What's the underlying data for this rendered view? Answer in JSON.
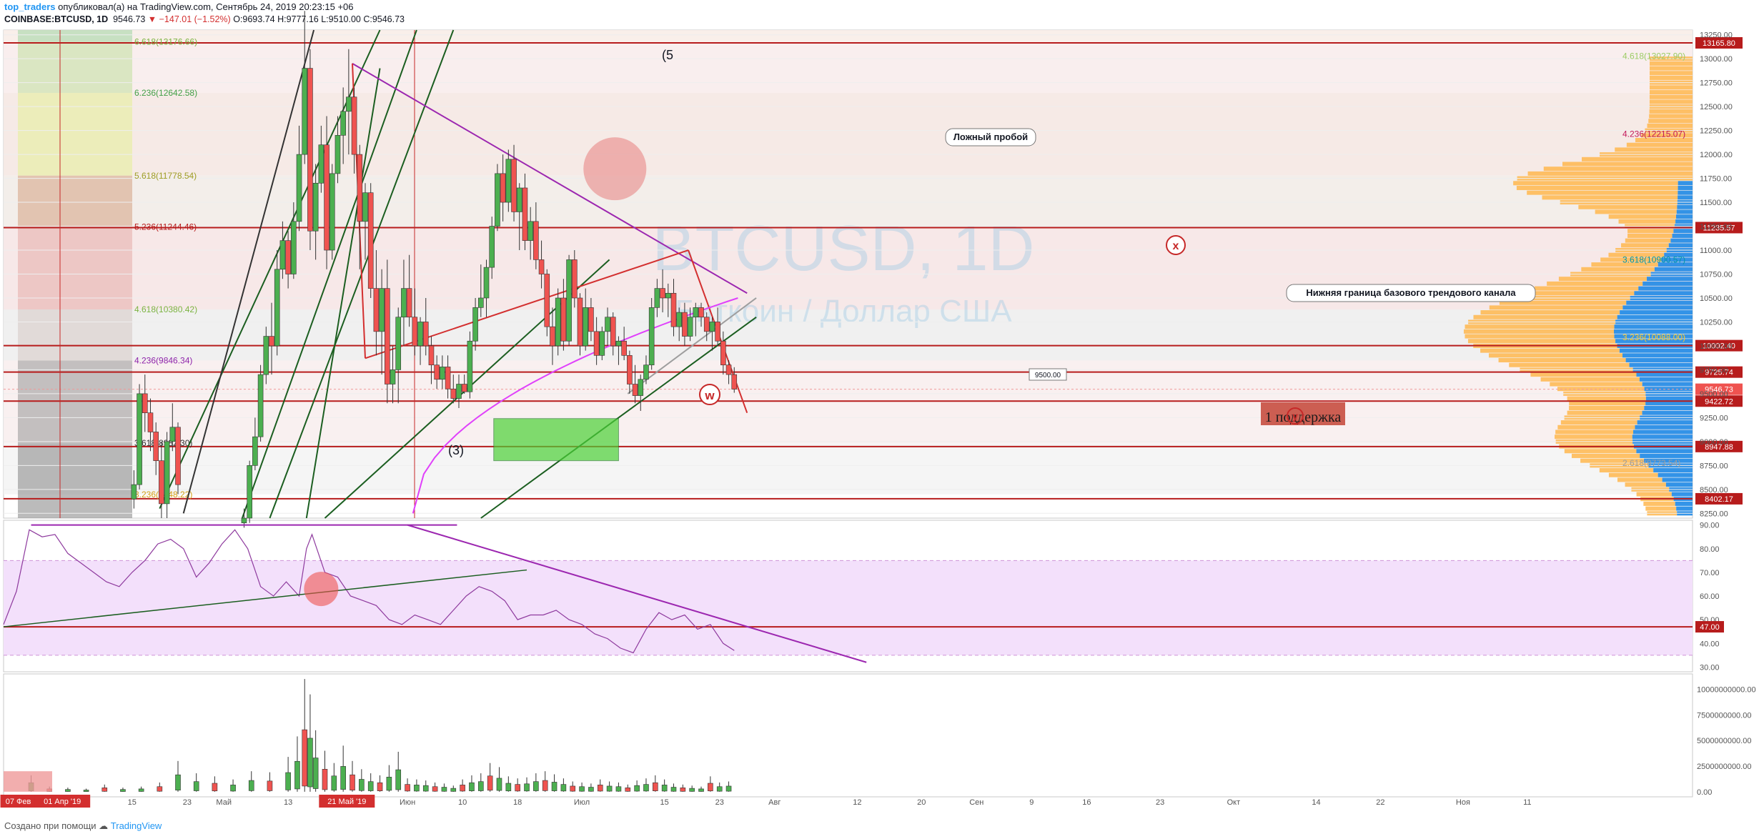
{
  "header": {
    "author": "top_traders",
    "published": "опубликовал(а) на TradingView.com, Сентябрь 24, 2019 20:23:15 +06",
    "symbol": "COINBASE:BTCUSD, 1D",
    "price": "9546.73",
    "change": "▼ −147.01 (−1.52%)",
    "open": "O:9693.74",
    "high": "H:9777.16",
    "low": "L:9510.00",
    "close": "C:9546.73"
  },
  "watermark": {
    "line1": "BTCUSD, 1D",
    "line2": "Биткоин / Доллар США"
  },
  "footer": {
    "created_with": "Создано при помощи",
    "brand": "TradingView"
  },
  "colors": {
    "up": "#4caf50",
    "down": "#ef5350",
    "fib_red": "#b71c1c",
    "purple": "#9c27b0",
    "magenta": "#e040fb",
    "green_line": "#1b5e20",
    "volume_profile_blue": "#1e88e5",
    "volume_profile_orange": "#ffb74d",
    "rsi_fill": "#f3e0fb"
  },
  "chart_data": [
    {
      "type": "candlestick",
      "pane": "price",
      "ylim": [
        8200,
        13300
      ],
      "y_ticks": [
        "8250.00",
        "8500.00",
        "8750.00",
        "9000.00",
        "9250.00",
        "9500.00",
        "9750.00",
        "10000.00",
        "10250.00",
        "10500.00",
        "10750.00",
        "11000.00",
        "11250.00",
        "11500.00",
        "11750.00",
        "12000.00",
        "12250.00",
        "12500.00",
        "12750.00",
        "13000.00",
        "13250.00"
      ],
      "x_labels": [
        "07 Фев",
        "01 Апр '19",
        "15",
        "23",
        "Май",
        "13",
        "21 Май '19",
        "Июн",
        "10",
        "18",
        "Июл",
        "15",
        "23",
        "Авг",
        "12",
        "20",
        "Сен",
        "9",
        "16",
        "23",
        "Окт",
        "14",
        "22",
        "Ноя",
        "11"
      ],
      "x_label_pos": [
        0.8,
        3.2,
        7,
        10,
        12,
        15.5,
        18.7,
        22,
        25,
        28,
        31.5,
        36,
        39,
        42,
        46.5,
        50,
        53,
        56,
        59,
        63,
        67,
        71.5,
        75,
        79.5,
        83
      ],
      "ohlc": [
        [
          7.1,
          8400,
          8700,
          8300,
          8550
        ],
        [
          7.4,
          8550,
          9600,
          8500,
          9500
        ],
        [
          7.7,
          9500,
          9700,
          9100,
          9300
        ],
        [
          8.0,
          9300,
          9450,
          8900,
          9100
        ],
        [
          8.3,
          9100,
          9200,
          8650,
          8800
        ],
        [
          8.6,
          8800,
          9000,
          8200,
          8350
        ],
        [
          8.9,
          8350,
          9100,
          8200,
          9000
        ],
        [
          9.2,
          9000,
          9400,
          8900,
          9150
        ],
        [
          9.5,
          9150,
          9200,
          8450,
          8550
        ],
        [
          13.1,
          8150,
          8300,
          8100,
          8200
        ],
        [
          13.4,
          8200,
          8800,
          8150,
          8750
        ],
        [
          13.7,
          8750,
          9250,
          8700,
          9050
        ],
        [
          14.0,
          9050,
          9800,
          9000,
          9700
        ],
        [
          14.3,
          9700,
          10200,
          9600,
          10100
        ],
        [
          14.6,
          10100,
          10450,
          9700,
          10000
        ],
        [
          14.9,
          10000,
          11000,
          9900,
          10800
        ],
        [
          15.2,
          10800,
          11300,
          10700,
          11100
        ],
        [
          15.5,
          11100,
          11200,
          10600,
          10750
        ],
        [
          15.8,
          10750,
          11500,
          10700,
          11300
        ],
        [
          16.1,
          11300,
          12300,
          11200,
          12000
        ],
        [
          16.4,
          12000,
          13500,
          11900,
          12900
        ],
        [
          16.7,
          12900,
          13100,
          11000,
          11200
        ],
        [
          17.0,
          11200,
          11900,
          10900,
          11700
        ],
        [
          17.3,
          11700,
          12300,
          11600,
          12100
        ],
        [
          17.6,
          12100,
          12400,
          10800,
          11000
        ],
        [
          17.9,
          11000,
          11900,
          10900,
          11800
        ],
        [
          18.2,
          11800,
          12400,
          11700,
          12200
        ],
        [
          18.5,
          12200,
          12700,
          11900,
          12450
        ],
        [
          18.8,
          12450,
          13100,
          12000,
          12600
        ],
        [
          19.1,
          12600,
          12700,
          11800,
          12000
        ],
        [
          19.4,
          12000,
          12100,
          10800,
          11300
        ],
        [
          19.7,
          11300,
          11700,
          10900,
          11600
        ],
        [
          20.0,
          11600,
          11700,
          10500,
          10600
        ],
        [
          20.3,
          10600,
          11000,
          9900,
          10150
        ],
        [
          20.6,
          10150,
          10800,
          9700,
          10600
        ],
        [
          20.9,
          10600,
          10900,
          9400,
          9600
        ],
        [
          21.2,
          9600,
          10000,
          9400,
          9750
        ],
        [
          21.5,
          9750,
          10400,
          9400,
          10300
        ],
        [
          21.8,
          10300,
          10900,
          10000,
          10600
        ],
        [
          22.1,
          10600,
          10950,
          10200,
          10300
        ],
        [
          22.4,
          10300,
          10600,
          9900,
          10000
        ],
        [
          22.7,
          10000,
          10300,
          9800,
          10250
        ],
        [
          23.0,
          10250,
          10500,
          9900,
          10000
        ],
        [
          23.3,
          10000,
          10100,
          9600,
          9800
        ],
        [
          23.6,
          9800,
          9900,
          9550,
          9650
        ],
        [
          23.9,
          9650,
          9900,
          9550,
          9780
        ],
        [
          24.2,
          9780,
          9900,
          9450,
          9550
        ],
        [
          24.5,
          9550,
          9700,
          9400,
          9450
        ],
        [
          24.8,
          9450,
          9700,
          9350,
          9600
        ],
        [
          25.1,
          9600,
          9700,
          9500,
          9520
        ],
        [
          25.4,
          9520,
          10150,
          9450,
          10050
        ],
        [
          25.7,
          10050,
          10500,
          9950,
          10400
        ],
        [
          26.0,
          10400,
          10850,
          10300,
          10500
        ],
        [
          26.3,
          10500,
          10900,
          10300,
          10820
        ],
        [
          26.6,
          10820,
          11350,
          10700,
          11250
        ],
        [
          26.9,
          11250,
          11900,
          11200,
          11800
        ],
        [
          27.2,
          11800,
          12000,
          11300,
          11500
        ],
        [
          27.5,
          11500,
          12050,
          11400,
          11950
        ],
        [
          27.8,
          11950,
          12100,
          11300,
          11400
        ],
        [
          28.1,
          11400,
          11700,
          11000,
          11650
        ],
        [
          28.4,
          11650,
          11800,
          11000,
          11100
        ],
        [
          28.7,
          11100,
          11450,
          10900,
          11300
        ],
        [
          29.0,
          11300,
          11500,
          10800,
          10900
        ],
        [
          29.3,
          10900,
          11100,
          10600,
          10750
        ],
        [
          29.6,
          10750,
          10800,
          10100,
          10200
        ],
        [
          29.9,
          10200,
          10400,
          9800,
          10000
        ],
        [
          30.2,
          10000,
          10600,
          9900,
          10500
        ],
        [
          30.5,
          10500,
          10700,
          9950,
          10050
        ],
        [
          30.8,
          10050,
          10950,
          10000,
          10900
        ],
        [
          31.1,
          10900,
          11000,
          10400,
          10500
        ],
        [
          31.4,
          10500,
          10550,
          9900,
          10000
        ],
        [
          31.7,
          10000,
          10600,
          9950,
          10400
        ],
        [
          32.0,
          10400,
          10500,
          10050,
          10150
        ],
        [
          32.3,
          10150,
          10300,
          9800,
          9900
        ],
        [
          32.6,
          9900,
          10200,
          9850,
          10150
        ],
        [
          32.9,
          10150,
          10400,
          10000,
          10300
        ],
        [
          33.2,
          10300,
          10350,
          9900,
          10000
        ],
        [
          33.5,
          10000,
          10100,
          9800,
          10050
        ],
        [
          33.8,
          10050,
          10200,
          9850,
          9900
        ],
        [
          34.1,
          9900,
          9950,
          9500,
          9600
        ],
        [
          34.4,
          9600,
          9800,
          9400,
          9480
        ],
        [
          34.7,
          9480,
          9700,
          9320,
          9650
        ],
        [
          35.0,
          9650,
          9900,
          9600,
          9800
        ],
        [
          35.3,
          9800,
          10500,
          9750,
          10400
        ],
        [
          35.6,
          10400,
          10700,
          10300,
          10600
        ],
        [
          35.9,
          10600,
          10800,
          10350,
          10500
        ],
        [
          36.2,
          10500,
          10650,
          10300,
          10550
        ],
        [
          36.5,
          10550,
          10700,
          10100,
          10200
        ],
        [
          36.8,
          10200,
          10400,
          10050,
          10350
        ],
        [
          37.1,
          10350,
          10450,
          10000,
          10100
        ],
        [
          37.4,
          10100,
          10400,
          10050,
          10300
        ],
        [
          37.7,
          10300,
          10450,
          10100,
          10400
        ],
        [
          38.0,
          10400,
          10450,
          10200,
          10300
        ],
        [
          38.3,
          10300,
          10350,
          10050,
          10150
        ],
        [
          38.6,
          10150,
          10300,
          9950,
          10250
        ],
        [
          38.9,
          10250,
          10400,
          10000,
          10050
        ],
        [
          39.2,
          10050,
          10150,
          9700,
          9800
        ],
        [
          39.5,
          9800,
          9850,
          9600,
          9700
        ],
        [
          39.8,
          9700,
          9777,
          9510,
          9547
        ]
      ],
      "volume_profile": {
        "blue_bins": [
          11500,
          11000,
          10500,
          10000,
          9500,
          9000,
          8500
        ],
        "orange_bins": [
          11500,
          11000,
          10500,
          10000,
          9500,
          9000,
          8500
        ]
      },
      "price_labels": [
        {
          "value": 13165.8,
          "text": "13165.80"
        },
        {
          "value": 11235.57,
          "text": "11235.57"
        },
        {
          "value": 10002.4,
          "text": "10002.40"
        },
        {
          "value": 9725.74,
          "text": "9725.74"
        },
        {
          "value": 9546.73,
          "text": "9546.73"
        },
        {
          "value": 9422.72,
          "text": "9422.72"
        },
        {
          "value": 8947.88,
          "text": "8947.88"
        },
        {
          "value": 8402.17,
          "text": "8402.17"
        }
      ],
      "fib_levels_left": [
        {
          "value": 13176.66,
          "text": "6.618(13176.66)"
        },
        {
          "value": 12642.58,
          "text": "6.236(12642.58)"
        },
        {
          "value": 11778.54,
          "text": "5.618(11778.54)"
        },
        {
          "value": 11244.46,
          "text": "5.236(11244.46)"
        },
        {
          "value": 10380.42,
          "text": "4.618(10380.42)"
        },
        {
          "value": 9846.34,
          "text": "4.236(9846.34)"
        },
        {
          "value": 8982.3,
          "text": "3.618(8982.30)"
        },
        {
          "value": 8448.22,
          "text": "3.236(8448.22)"
        }
      ],
      "fib_levels_right": [
        {
          "value": 13027.9,
          "text": "4.618(13027.90)"
        },
        {
          "value": 12215.07,
          "text": "4.236(12215.07)"
        },
        {
          "value": 10900.57,
          "text": "3.618(10900.57)"
        },
        {
          "value": 10088.0,
          "text": "3.236(10088.00)"
        },
        {
          "value": 8773.54,
          "text": "2.618(8773.54)"
        }
      ],
      "annotations": {
        "false_breakout": "Ложный пробой",
        "channel_lower_bound": "Нижняя граница базового трендового канала",
        "support_1": "1 поддержка",
        "label_9500": "9500.00",
        "wave_5": "(5",
        "wave_3": "(3)",
        "w_label": "w",
        "x_label": "x",
        "y_label": "y"
      }
    },
    {
      "type": "line",
      "pane": "rsi",
      "ylim": [
        28,
        92
      ],
      "y_ticks": [
        "90.00",
        "80.00",
        "70.00",
        "60.00",
        "50.00",
        "40.00",
        "30.00"
      ],
      "level_label": "47.00",
      "x": [
        0,
        0.7,
        1.4,
        2.1,
        2.8,
        3.5,
        4.2,
        4.9,
        5.6,
        6.3,
        7.0,
        7.7,
        8.4,
        9.1,
        9.8,
        10.5,
        11.2,
        11.9,
        12.6,
        13.3,
        14.0,
        14.7,
        15.4,
        16.1,
        16.5,
        16.8,
        17.5,
        18.2,
        18.9,
        19.6,
        20.3,
        21.0,
        21.7,
        22.4,
        23.1,
        23.8,
        24.5,
        25.2,
        25.9,
        26.6,
        27.3,
        28.0,
        28.7,
        29.4,
        30.1,
        30.8,
        31.5,
        32.2,
        32.9,
        33.6,
        34.3,
        35.0,
        35.7,
        36.4,
        37.1,
        37.8,
        38.5,
        39.2,
        39.8
      ],
      "values": [
        48,
        62,
        88,
        85,
        86,
        78,
        74,
        70,
        66,
        64,
        70,
        75,
        82,
        84,
        80,
        68,
        74,
        82,
        88,
        80,
        64,
        60,
        66,
        60,
        80,
        86,
        70,
        68,
        60,
        58,
        56,
        50,
        48,
        52,
        50,
        48,
        54,
        60,
        64,
        62,
        58,
        50,
        52,
        52,
        54,
        50,
        48,
        44,
        42,
        38,
        36,
        46,
        53,
        50,
        52,
        46,
        48,
        40,
        37
      ]
    },
    {
      "type": "bar",
      "pane": "volume",
      "ylim": [
        -500000000,
        11500000000
      ],
      "y_ticks": [
        "10000000000.00",
        "7500000000.00",
        "5000000000.00",
        "2500000000.00",
        "0.00"
      ],
      "x": [
        1.5,
        2.5,
        3.5,
        4.5,
        5.5,
        6.5,
        7.5,
        8.5,
        9.5,
        10.5,
        11.5,
        12.5,
        13.5,
        14.5,
        15.5,
        16.0,
        16.4,
        16.7,
        17.0,
        17.5,
        18.0,
        18.5,
        19.0,
        19.5,
        20.0,
        20.5,
        21.0,
        21.5,
        22.0,
        22.5,
        23.0,
        23.5,
        24.0,
        24.5,
        25.0,
        25.5,
        26.0,
        26.5,
        27.0,
        27.5,
        28.0,
        28.5,
        29.0,
        29.5,
        30.0,
        30.5,
        31.0,
        31.5,
        32.0,
        32.5,
        33.0,
        33.5,
        34.0,
        34.5,
        35.0,
        35.5,
        36.0,
        36.5,
        37.0,
        37.5,
        38.0,
        38.5,
        39.0,
        39.5
      ],
      "values": [
        1600000000,
        500000000,
        400000000,
        300000000,
        700000000,
        400000000,
        500000000,
        900000000,
        3000000000,
        1800000000,
        1500000000,
        1200000000,
        2000000000,
        1900000000,
        3400000000,
        5400000000,
        11000000000,
        9500000000,
        6000000000,
        4000000000,
        2800000000,
        4500000000,
        3000000000,
        2200000000,
        1800000000,
        1600000000,
        2600000000,
        3900000000,
        1300000000,
        1200000000,
        1100000000,
        900000000,
        800000000,
        600000000,
        1200000000,
        1600000000,
        1800000000,
        2800000000,
        2400000000,
        1500000000,
        1300000000,
        1400000000,
        1800000000,
        2000000000,
        1700000000,
        1300000000,
        1000000000,
        900000000,
        800000000,
        1200000000,
        1000000000,
        900000000,
        700000000,
        1100000000,
        1300000000,
        1600000000,
        1200000000,
        800000000,
        700000000,
        600000000,
        500000000,
        1500000000,
        900000000,
        1000000000
      ],
      "left_box_label": "47.00"
    }
  ]
}
